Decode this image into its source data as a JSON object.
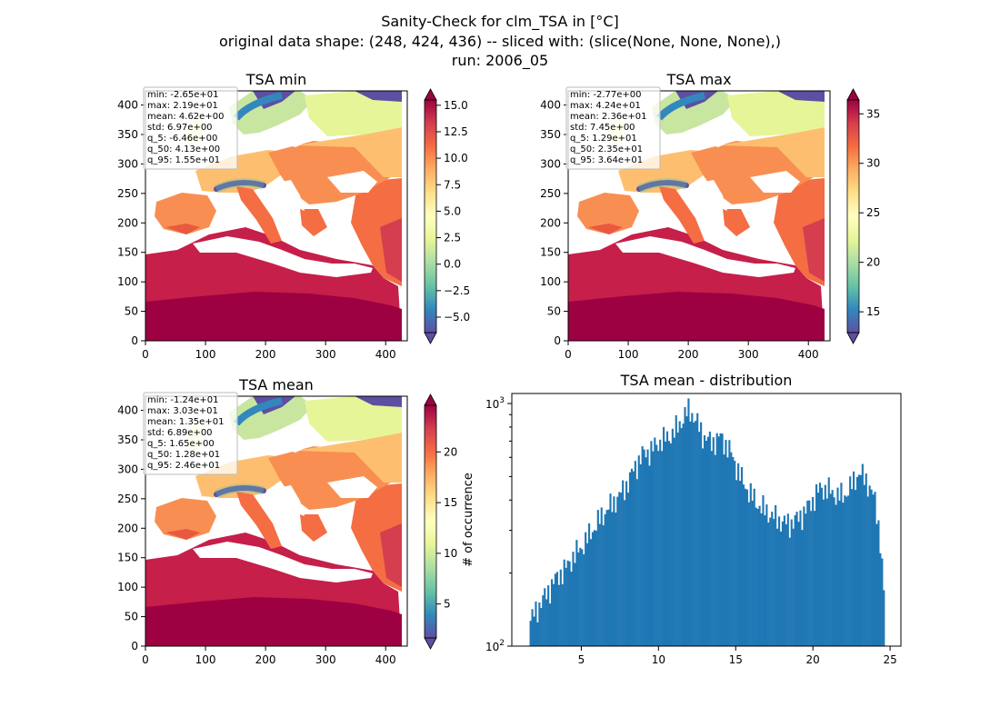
{
  "figure": {
    "title_lines": [
      "Sanity-Check for clm_TSA in [°C]",
      "original data shape: (248, 424, 436) -- sliced with: (slice(None, None, None),)",
      "run: 2006_05"
    ]
  },
  "chart_data": [
    {
      "type": "heatmap",
      "title": "TSA min",
      "xlim": [
        0,
        436
      ],
      "ylim": [
        0,
        424
      ],
      "xticks": [
        "0",
        "100",
        "200",
        "300",
        "400"
      ],
      "yticks": [
        "0",
        "50",
        "100",
        "150",
        "200",
        "250",
        "300",
        "350",
        "400"
      ],
      "colormap": "Spectral_r",
      "colorbar": {
        "range": [
          -6.46,
          15.5
        ],
        "ticks": [
          -5.0,
          -2.5,
          0.0,
          2.5,
          5.0,
          7.5,
          10.0,
          12.5,
          15.0
        ],
        "tick_labels": [
          "−5.0",
          "−2.5",
          "0.0",
          "2.5",
          "5.0",
          "7.5",
          "10.0",
          "12.5",
          "15.0"
        ],
        "extend": "both"
      },
      "stats": [
        "min: -2.65e+01",
        "max: 2.19e+01",
        "mean: 4.62e+00",
        "std: 6.97e+00",
        "q_5: -6.46e+00",
        "q_50: 4.13e+00",
        "q_95: 1.55e+01"
      ]
    },
    {
      "type": "heatmap",
      "title": "TSA max",
      "xlim": [
        0,
        436
      ],
      "ylim": [
        0,
        424
      ],
      "xticks": [
        "0",
        "100",
        "200",
        "300",
        "400"
      ],
      "yticks": [
        "0",
        "50",
        "100",
        "150",
        "200",
        "250",
        "300",
        "350",
        "400"
      ],
      "colormap": "Spectral_r",
      "colorbar": {
        "range": [
          12.9,
          36.4
        ],
        "ticks": [
          15,
          20,
          25,
          30,
          35
        ],
        "tick_labels": [
          "15",
          "20",
          "25",
          "30",
          "35"
        ],
        "extend": "both"
      },
      "stats": [
        "min: -2.77e+00",
        "max: 4.24e+01",
        "mean: 2.36e+01",
        "std: 7.45e+00",
        "q_5: 1.29e+01",
        "q_50: 2.35e+01",
        "q_95: 3.64e+01"
      ]
    },
    {
      "type": "heatmap",
      "title": "TSA mean",
      "xlim": [
        0,
        436
      ],
      "ylim": [
        0,
        424
      ],
      "xticks": [
        "0",
        "100",
        "200",
        "300",
        "400"
      ],
      "yticks": [
        "0",
        "50",
        "100",
        "150",
        "200",
        "250",
        "300",
        "350",
        "400"
      ],
      "colormap": "Spectral_r",
      "colorbar": {
        "range": [
          1.65,
          24.6
        ],
        "ticks": [
          5,
          10,
          15,
          20
        ],
        "tick_labels": [
          "5",
          "10",
          "15",
          "20"
        ],
        "extend": "both"
      },
      "stats": [
        "min: -1.24e+01",
        "max: 3.03e+01",
        "mean: 1.35e+01",
        "std: 6.89e+00",
        "q_5: 1.65e+00",
        "q_50: 1.28e+01",
        "q_95: 2.46e+01"
      ]
    },
    {
      "type": "bar",
      "subtype": "histogram",
      "title": "TSA mean - distribution",
      "xlabel": "",
      "ylabel": "# of occurrence",
      "xlim": [
        0.5,
        25.7
      ],
      "ylim": [
        100,
        1100
      ],
      "yscale": "log",
      "xticks": [
        "5",
        "10",
        "15",
        "20",
        "25"
      ],
      "yticks": [
        "10^2",
        "10^3"
      ],
      "color": "#1f77b4",
      "bin_range": [
        1.65,
        24.6
      ],
      "bin_width": 0.115,
      "x": [
        1.65,
        2.0,
        2.5,
        3.0,
        3.5,
        4.0,
        4.5,
        5.0,
        5.5,
        6.0,
        6.5,
        7.0,
        7.5,
        8.0,
        8.5,
        9.0,
        9.5,
        10.0,
        10.5,
        11.0,
        11.5,
        12.0,
        12.5,
        13.0,
        13.5,
        14.0,
        14.5,
        15.0,
        15.5,
        16.0,
        16.5,
        17.0,
        17.5,
        18.0,
        18.5,
        19.0,
        19.5,
        20.0,
        20.5,
        21.0,
        21.5,
        22.0,
        22.5,
        23.0,
        23.5,
        24.0,
        24.3,
        24.6
      ],
      "values": [
        125,
        138,
        155,
        175,
        195,
        210,
        235,
        255,
        285,
        320,
        355,
        385,
        420,
        470,
        550,
        620,
        640,
        690,
        720,
        760,
        850,
        950,
        830,
        720,
        690,
        730,
        660,
        560,
        470,
        420,
        380,
        360,
        340,
        325,
        320,
        335,
        360,
        400,
        450,
        440,
        420,
        415,
        460,
        520,
        480,
        400,
        300,
        160
      ]
    }
  ]
}
